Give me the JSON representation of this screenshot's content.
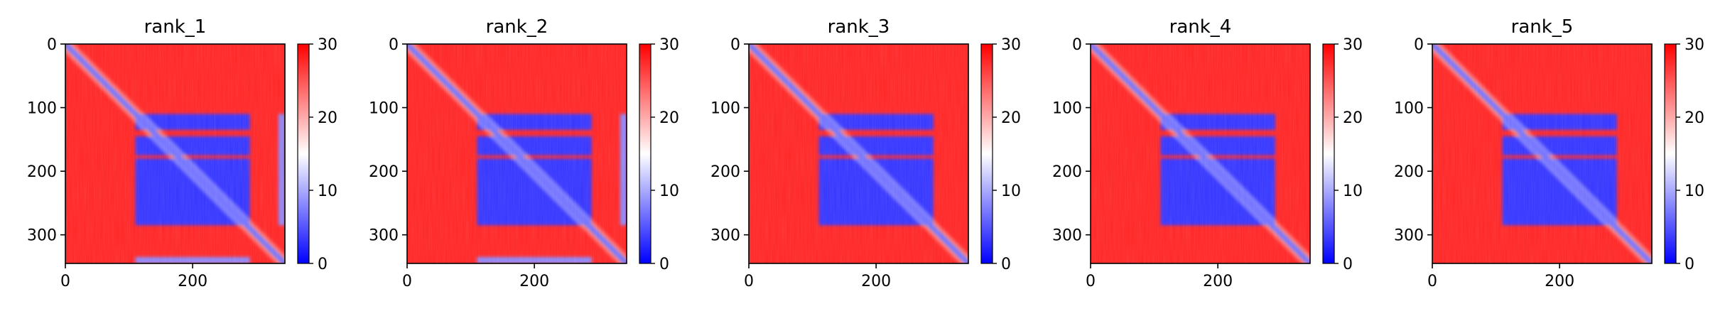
{
  "chart_data": [
    {
      "type": "heatmap",
      "title": "rank_1",
      "xlabel": "",
      "ylabel": "",
      "xlim": [
        0,
        345
      ],
      "ylim": [
        345,
        0
      ],
      "x_ticks": [
        0,
        200
      ],
      "y_ticks": [
        0,
        100,
        200,
        300
      ],
      "colorbar": {
        "min": 0,
        "max": 30,
        "ticks": [
          0,
          10,
          20,
          30
        ],
        "colormap": [
          "#0000ff",
          "#ffffff",
          "#ff0000"
        ]
      },
      "blocks": [
        {
          "x": [
            110,
            290
          ],
          "y": [
            110,
            135
          ],
          "value": 3
        },
        {
          "x": [
            110,
            290
          ],
          "y": [
            145,
            175
          ],
          "value": 3
        },
        {
          "x": [
            110,
            290
          ],
          "y": [
            180,
            220
          ],
          "value": 3
        },
        {
          "x": [
            110,
            290
          ],
          "y": [
            220,
            285
          ],
          "value": 3
        },
        {
          "x": [
            335,
            345
          ],
          "y": [
            110,
            285
          ],
          "value": 8
        },
        {
          "x": [
            110,
            290
          ],
          "y": [
            335,
            345
          ],
          "value": 8
        }
      ],
      "diagonal_value": 2,
      "background_value": 28
    },
    {
      "type": "heatmap",
      "title": "rank_2",
      "xlabel": "",
      "ylabel": "",
      "xlim": [
        0,
        345
      ],
      "ylim": [
        345,
        0
      ],
      "x_ticks": [
        0,
        200
      ],
      "y_ticks": [
        0,
        100,
        200,
        300
      ],
      "colorbar": {
        "min": 0,
        "max": 30,
        "ticks": [
          0,
          10,
          20,
          30
        ],
        "colormap": [
          "#0000ff",
          "#ffffff",
          "#ff0000"
        ]
      },
      "blocks": [
        {
          "x": [
            110,
            290
          ],
          "y": [
            110,
            135
          ],
          "value": 3
        },
        {
          "x": [
            110,
            290
          ],
          "y": [
            145,
            175
          ],
          "value": 3
        },
        {
          "x": [
            110,
            290
          ],
          "y": [
            180,
            220
          ],
          "value": 3
        },
        {
          "x": [
            110,
            290
          ],
          "y": [
            220,
            285
          ],
          "value": 3
        },
        {
          "x": [
            335,
            345
          ],
          "y": [
            110,
            285
          ],
          "value": 8
        },
        {
          "x": [
            110,
            290
          ],
          "y": [
            335,
            345
          ],
          "value": 8
        }
      ],
      "diagonal_value": 2,
      "background_value": 28
    },
    {
      "type": "heatmap",
      "title": "rank_3",
      "xlabel": "",
      "ylabel": "",
      "xlim": [
        0,
        345
      ],
      "ylim": [
        345,
        0
      ],
      "x_ticks": [
        0,
        200
      ],
      "y_ticks": [
        0,
        100,
        200,
        300
      ],
      "colorbar": {
        "min": 0,
        "max": 30,
        "ticks": [
          0,
          10,
          20,
          30
        ],
        "colormap": [
          "#0000ff",
          "#ffffff",
          "#ff0000"
        ]
      },
      "blocks": [
        {
          "x": [
            110,
            290
          ],
          "y": [
            110,
            135
          ],
          "value": 3
        },
        {
          "x": [
            110,
            290
          ],
          "y": [
            145,
            175
          ],
          "value": 3
        },
        {
          "x": [
            110,
            290
          ],
          "y": [
            180,
            220
          ],
          "value": 3
        },
        {
          "x": [
            110,
            290
          ],
          "y": [
            220,
            285
          ],
          "value": 3
        }
      ],
      "diagonal_value": 2,
      "background_value": 28
    },
    {
      "type": "heatmap",
      "title": "rank_4",
      "xlabel": "",
      "ylabel": "",
      "xlim": [
        0,
        345
      ],
      "ylim": [
        345,
        0
      ],
      "x_ticks": [
        0,
        200
      ],
      "y_ticks": [
        0,
        100,
        200,
        300
      ],
      "colorbar": {
        "min": 0,
        "max": 30,
        "ticks": [
          0,
          10,
          20,
          30
        ],
        "colormap": [
          "#0000ff",
          "#ffffff",
          "#ff0000"
        ]
      },
      "blocks": [
        {
          "x": [
            110,
            290
          ],
          "y": [
            110,
            135
          ],
          "value": 3
        },
        {
          "x": [
            110,
            290
          ],
          "y": [
            145,
            175
          ],
          "value": 3
        },
        {
          "x": [
            110,
            290
          ],
          "y": [
            180,
            220
          ],
          "value": 3
        },
        {
          "x": [
            110,
            290
          ],
          "y": [
            220,
            285
          ],
          "value": 3
        }
      ],
      "diagonal_value": 2,
      "background_value": 28
    },
    {
      "type": "heatmap",
      "title": "rank_5",
      "xlabel": "",
      "ylabel": "",
      "xlim": [
        0,
        345
      ],
      "ylim": [
        345,
        0
      ],
      "x_ticks": [
        0,
        200
      ],
      "y_ticks": [
        0,
        100,
        200,
        300
      ],
      "colorbar": {
        "min": 0,
        "max": 30,
        "ticks": [
          0,
          10,
          20,
          30
        ],
        "colormap": [
          "#0000ff",
          "#ffffff",
          "#ff0000"
        ]
      },
      "blocks": [
        {
          "x": [
            110,
            290
          ],
          "y": [
            110,
            135
          ],
          "value": 3
        },
        {
          "x": [
            110,
            290
          ],
          "y": [
            145,
            175
          ],
          "value": 3
        },
        {
          "x": [
            110,
            290
          ],
          "y": [
            180,
            220
          ],
          "value": 3
        },
        {
          "x": [
            110,
            290
          ],
          "y": [
            220,
            285
          ],
          "value": 3
        }
      ],
      "diagonal_value": 2,
      "background_value": 28
    }
  ]
}
